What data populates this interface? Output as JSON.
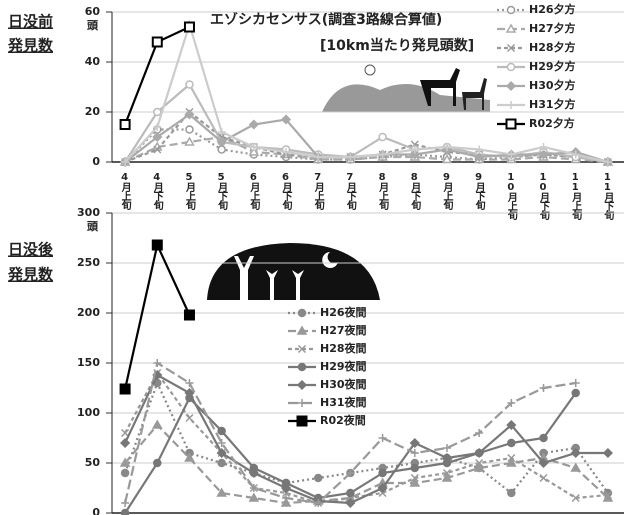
{
  "side_labels": {
    "top": [
      "日没前",
      "発見数"
    ],
    "bottom": [
      "日没後",
      "発見数"
    ]
  },
  "chart_data": [
    {
      "type": "line",
      "title": "エゾシカセンサス(調査3路線合算値)",
      "subtitle": "[10km当たり発見頭数]",
      "unit": "頭",
      "categories": [
        "4月上旬",
        "4月下旬",
        "5月上旬",
        "5月下旬",
        "6月上旬",
        "6月下旬",
        "7月上旬",
        "7月下旬",
        "8月上旬",
        "8月下旬",
        "9月上旬",
        "9月下旬",
        "10月上旬",
        "10月下旬",
        "11月上旬",
        "11月下旬"
      ],
      "ylim": [
        0,
        60
      ],
      "yticks": [
        0,
        20,
        40,
        60
      ],
      "grid": true,
      "legend": "upper right",
      "series": [
        {
          "name": "H26夕方",
          "color": "#999999",
          "dash": "2,3",
          "marker": "circle-open",
          "values": [
            0,
            13,
            13,
            5,
            3,
            2,
            1,
            1,
            2,
            3,
            2,
            1,
            2,
            3,
            2,
            0
          ]
        },
        {
          "name": "H27夕方",
          "color": "#aaaaaa",
          "dash": "8,4",
          "marker": "triangle-open",
          "values": [
            0,
            6,
            8,
            10,
            4,
            3,
            1,
            1,
            2,
            2,
            1,
            1,
            1,
            2,
            1,
            0
          ]
        },
        {
          "name": "H28夕方",
          "color": "#999999",
          "dash": "4,3",
          "marker": "x",
          "values": [
            0,
            5,
            20,
            10,
            6,
            3,
            2,
            2,
            3,
            7,
            4,
            3,
            2,
            3,
            2,
            0
          ]
        },
        {
          "name": "H29夕方",
          "color": "#bbbbbb",
          "dash": "",
          "marker": "circle-open",
          "values": [
            0,
            20,
            31,
            8,
            6,
            5,
            3,
            2,
            10,
            5,
            6,
            3,
            2,
            4,
            2,
            0
          ]
        },
        {
          "name": "H30夕方",
          "color": "#aaaaaa",
          "dash": "",
          "marker": "diamond",
          "values": [
            0,
            10,
            19,
            8,
            15,
            17,
            2,
            2,
            3,
            3,
            5,
            2,
            3,
            3,
            4,
            0
          ]
        },
        {
          "name": "H31夕方",
          "color": "#cccccc",
          "dash": "",
          "marker": "plus",
          "values": [
            0,
            14,
            55,
            12,
            6,
            4,
            2,
            2,
            3,
            5,
            6,
            5,
            3,
            6,
            3,
            0
          ]
        },
        {
          "name": "R02夕方",
          "color": "#000000",
          "dash": "",
          "marker": "square-open",
          "values": [
            15,
            48,
            54,
            null,
            null,
            null,
            null,
            null,
            null,
            null,
            null,
            null,
            null,
            null,
            null,
            null
          ]
        }
      ]
    },
    {
      "type": "line",
      "unit": "頭",
      "ylim": [
        0,
        300
      ],
      "yticks": [
        0,
        50,
        100,
        150,
        200,
        250,
        300
      ],
      "grid": true,
      "legend": "center",
      "series": [
        {
          "name": "H26夜間",
          "color": "#888888",
          "dash": "2,3",
          "marker": "circle",
          "values": [
            40,
            130,
            60,
            50,
            40,
            30,
            35,
            40,
            45,
            50,
            55,
            45,
            20,
            60,
            65,
            20
          ]
        },
        {
          "name": "H27夜間",
          "color": "#999999",
          "dash": "8,4",
          "marker": "triangle",
          "values": [
            50,
            88,
            55,
            20,
            15,
            10,
            12,
            15,
            30,
            30,
            35,
            45,
            50,
            55,
            45,
            15
          ]
        },
        {
          "name": "H28夜間",
          "color": "#999999",
          "dash": "4,3",
          "marker": "x",
          "values": [
            80,
            140,
            95,
            60,
            25,
            20,
            10,
            15,
            20,
            35,
            40,
            50,
            55,
            35,
            15,
            18
          ]
        },
        {
          "name": "H29夜間",
          "color": "#777777",
          "dash": "",
          "marker": "circle",
          "values": [
            0,
            50,
            115,
            82,
            45,
            30,
            15,
            20,
            40,
            45,
            50,
            60,
            70,
            75,
            120,
            null
          ]
        },
        {
          "name": "H30夜間",
          "color": "#777777",
          "dash": "",
          "marker": "diamond",
          "values": [
            70,
            138,
            120,
            60,
            40,
            25,
            12,
            10,
            25,
            70,
            55,
            60,
            88,
            50,
            60,
            60
          ]
        },
        {
          "name": "H31夜間",
          "color": "#999999",
          "dash": "10,4",
          "marker": "plus",
          "values": [
            10,
            150,
            130,
            70,
            25,
            15,
            10,
            40,
            75,
            60,
            65,
            80,
            110,
            125,
            130,
            null
          ]
        },
        {
          "name": "R02夜間",
          "color": "#000000",
          "dash": "",
          "marker": "square",
          "values": [
            124,
            268,
            198,
            null,
            null,
            null,
            null,
            null,
            null,
            null,
            null,
            null,
            null,
            null,
            null,
            null
          ]
        }
      ]
    }
  ]
}
